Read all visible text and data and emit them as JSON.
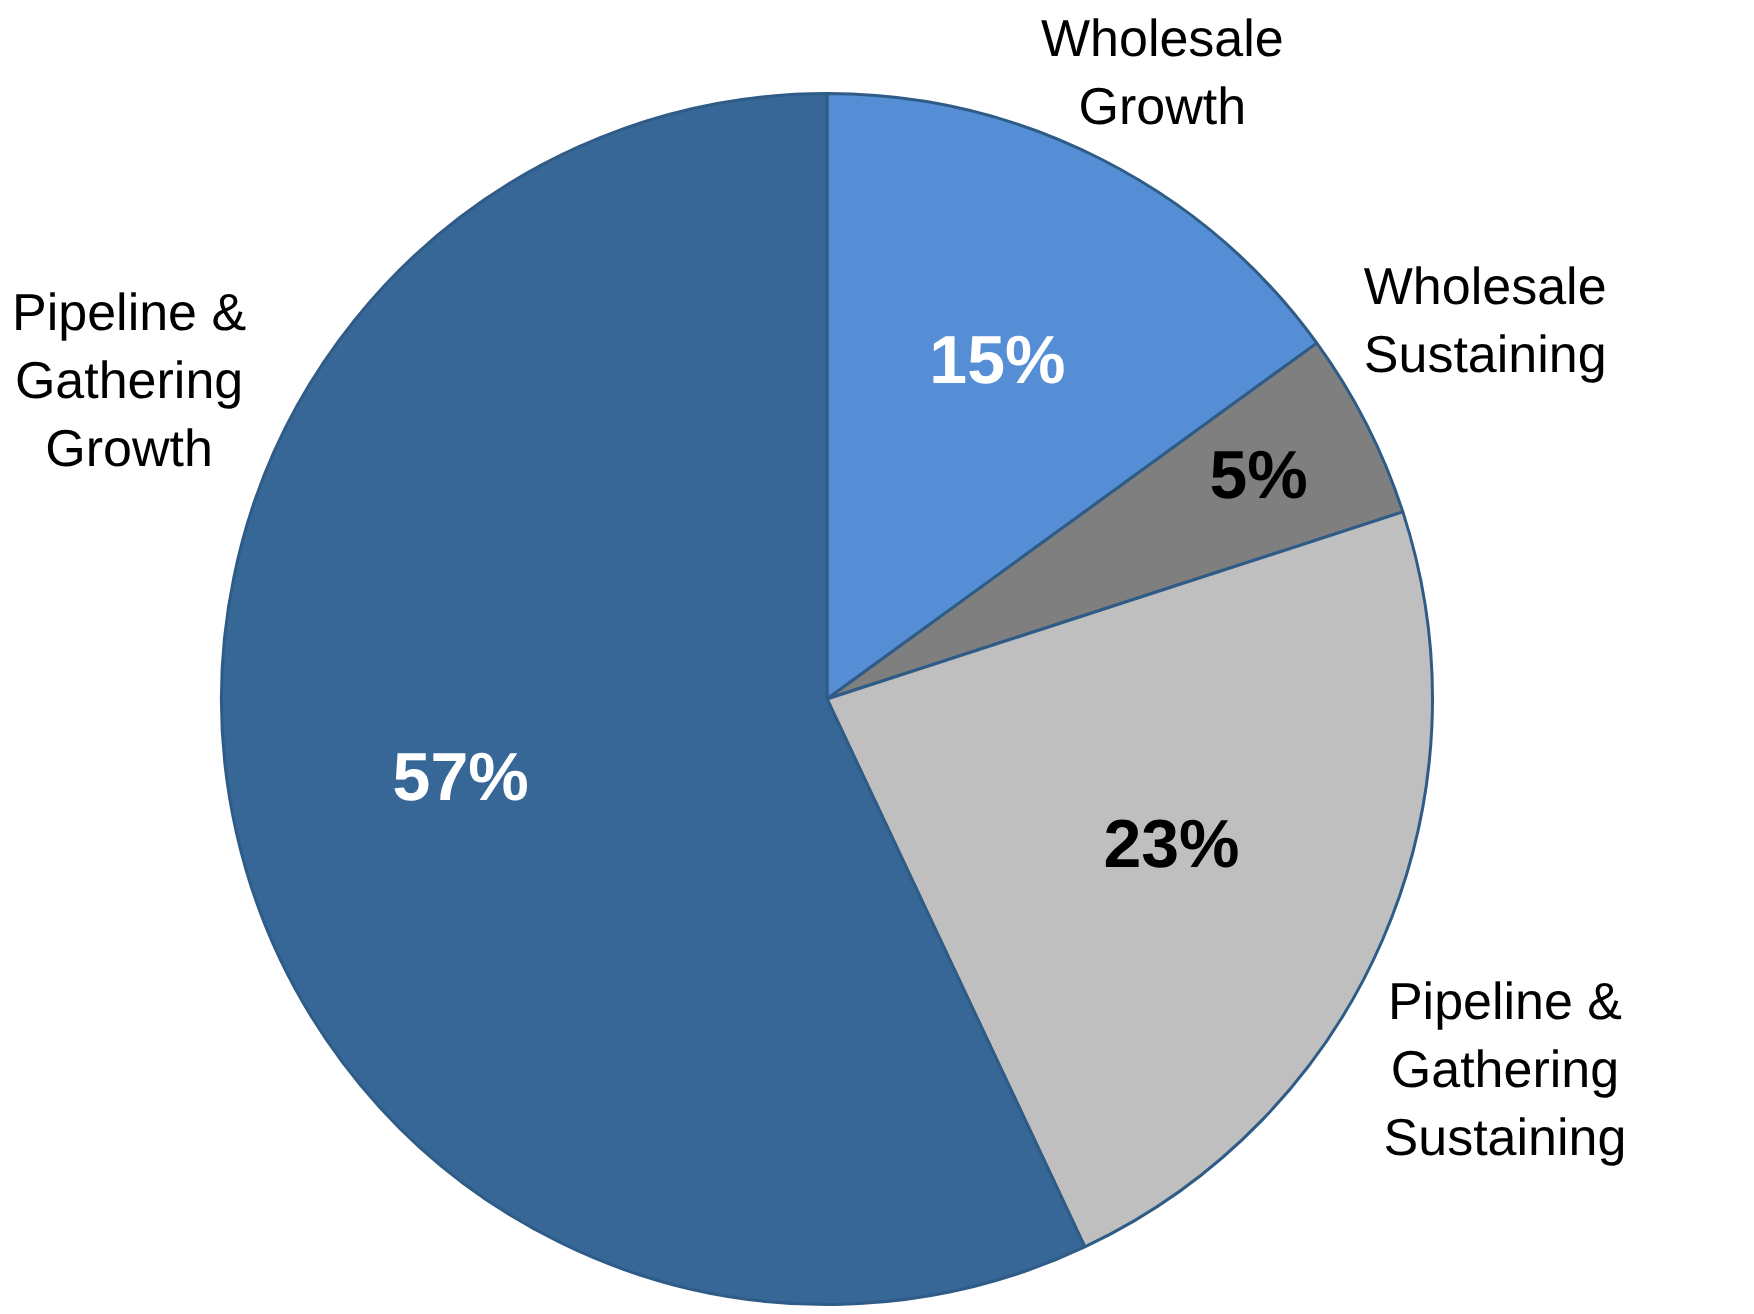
{
  "chart_data": {
    "type": "pie",
    "categories": [
      "Wholesale Growth",
      "Wholesale Sustaining",
      "Pipeline & Gathering Sustaining",
      "Pipeline & Gathering Growth"
    ],
    "values": [
      15,
      5,
      23,
      57
    ],
    "value_labels": [
      "15%",
      "5%",
      "23%",
      "57%"
    ],
    "colors": [
      "#558ed5",
      "#7f7f7f",
      "#bfbfbf",
      "#366797"
    ]
  }
}
